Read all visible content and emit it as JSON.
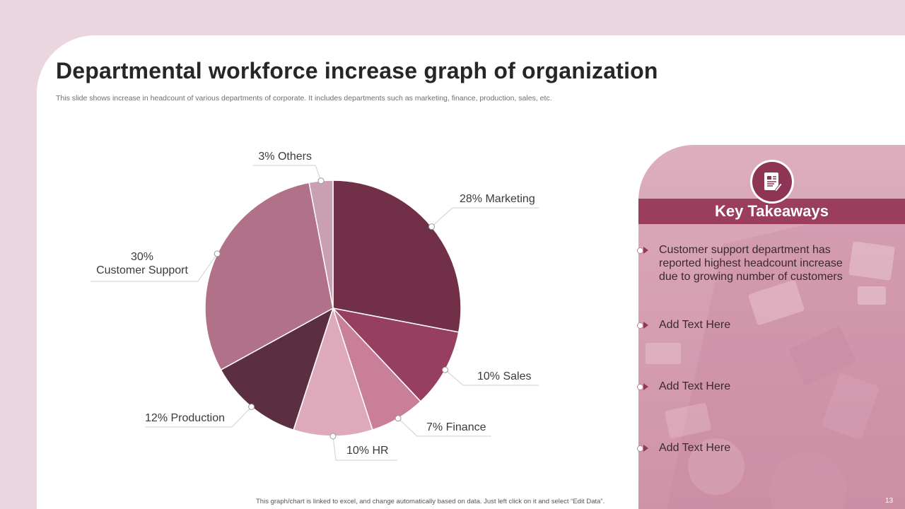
{
  "colors": {
    "outer_bg": "#ead6de",
    "band": "#9b3e5e",
    "icon_circle": "#8e3556"
  },
  "slide": {
    "title": "Departmental workforce increase graph of organization",
    "subtitle": "This slide shows increase in headcount of various departments of corporate. It includes departments such as marketing, finance, production, sales, etc.",
    "footer_note": "This graph/chart is linked to excel, and change automatically based on data. Just left click on it and select “Edit Data”.",
    "page_number": "13"
  },
  "chart_data": {
    "type": "pie",
    "title": "",
    "start": "12 o'clock, clockwise",
    "slices": [
      {
        "name": "Marketing",
        "value": 28,
        "label": "28% Marketing",
        "color": "#722f48"
      },
      {
        "name": "Sales",
        "value": 10,
        "label": "10% Sales",
        "color": "#963f60"
      },
      {
        "name": "Finance",
        "value": 7,
        "label": "7% Finance",
        "color": "#c97f98"
      },
      {
        "name": "HR",
        "value": 10,
        "label": "10% HR",
        "color": "#dda9bb"
      },
      {
        "name": "Production",
        "value": 12,
        "label": "12% Production",
        "color": "#5b2e41"
      },
      {
        "name": "Customer Support",
        "value": 30,
        "label": [
          "30%",
          "Customer Support"
        ],
        "color": "#b07189"
      },
      {
        "name": "Others",
        "value": 3,
        "label": "3% Others",
        "color": "#c9a0b1"
      }
    ]
  },
  "panel": {
    "heading": "Key Takeaways",
    "icon": "report-document-icon",
    "items": [
      {
        "text": "Customer support department has reported highest headcount increase due to growing number of customers"
      },
      {
        "text": "Add Text Here"
      },
      {
        "text": "Add Text Here"
      },
      {
        "text": "Add Text Here"
      }
    ]
  }
}
